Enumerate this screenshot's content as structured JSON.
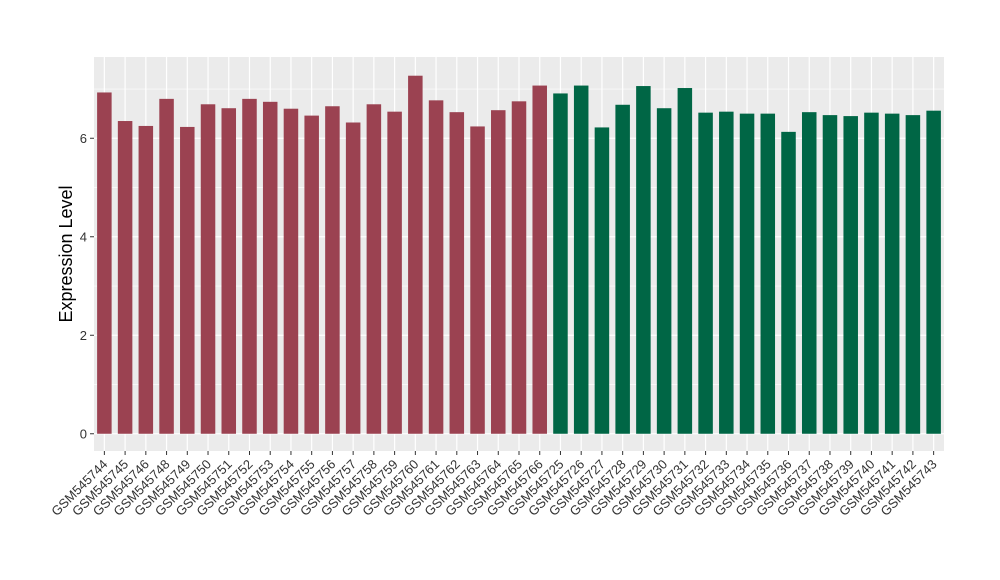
{
  "chart_data": {
    "type": "bar",
    "title": "",
    "xlabel": "",
    "ylabel": "Expression Level",
    "ylim": [
      -0.35,
      7.65
    ],
    "yticks": [
      0,
      2,
      4,
      6
    ],
    "grid": true,
    "legend": "none",
    "colors": {
      "group1": "#9b4251",
      "group2": "#006645",
      "panel": "#ebebeb",
      "grid": "#ffffff"
    },
    "categories": [
      "GSM545744",
      "GSM545745",
      "GSM545746",
      "GSM545748",
      "GSM545749",
      "GSM545750",
      "GSM545751",
      "GSM545752",
      "GSM545753",
      "GSM545754",
      "GSM545755",
      "GSM545756",
      "GSM545757",
      "GSM545758",
      "GSM545759",
      "GSM545760",
      "GSM545761",
      "GSM545762",
      "GSM545763",
      "GSM545764",
      "GSM545765",
      "GSM545766",
      "GSM545725",
      "GSM545726",
      "GSM545727",
      "GSM545728",
      "GSM545729",
      "GSM545730",
      "GSM545731",
      "GSM545732",
      "GSM545733",
      "GSM545734",
      "GSM545735",
      "GSM545736",
      "GSM545737",
      "GSM545738",
      "GSM545739",
      "GSM545740",
      "GSM545741",
      "GSM545742",
      "GSM545743"
    ],
    "values": [
      6.93,
      6.35,
      6.25,
      6.8,
      6.23,
      6.69,
      6.61,
      6.8,
      6.74,
      6.6,
      6.46,
      6.65,
      6.32,
      6.69,
      6.54,
      7.27,
      6.77,
      6.53,
      6.24,
      6.57,
      6.75,
      7.07,
      6.91,
      7.07,
      6.22,
      6.68,
      7.06,
      6.61,
      7.02,
      6.52,
      6.54,
      6.5,
      6.5,
      6.13,
      6.53,
      6.47,
      6.45,
      6.52,
      6.5,
      6.47,
      6.56
    ],
    "groups": [
      1,
      1,
      1,
      1,
      1,
      1,
      1,
      1,
      1,
      1,
      1,
      1,
      1,
      1,
      1,
      1,
      1,
      1,
      1,
      1,
      1,
      1,
      2,
      2,
      2,
      2,
      2,
      2,
      2,
      2,
      2,
      2,
      2,
      2,
      2,
      2,
      2,
      2,
      2,
      2,
      2
    ]
  }
}
